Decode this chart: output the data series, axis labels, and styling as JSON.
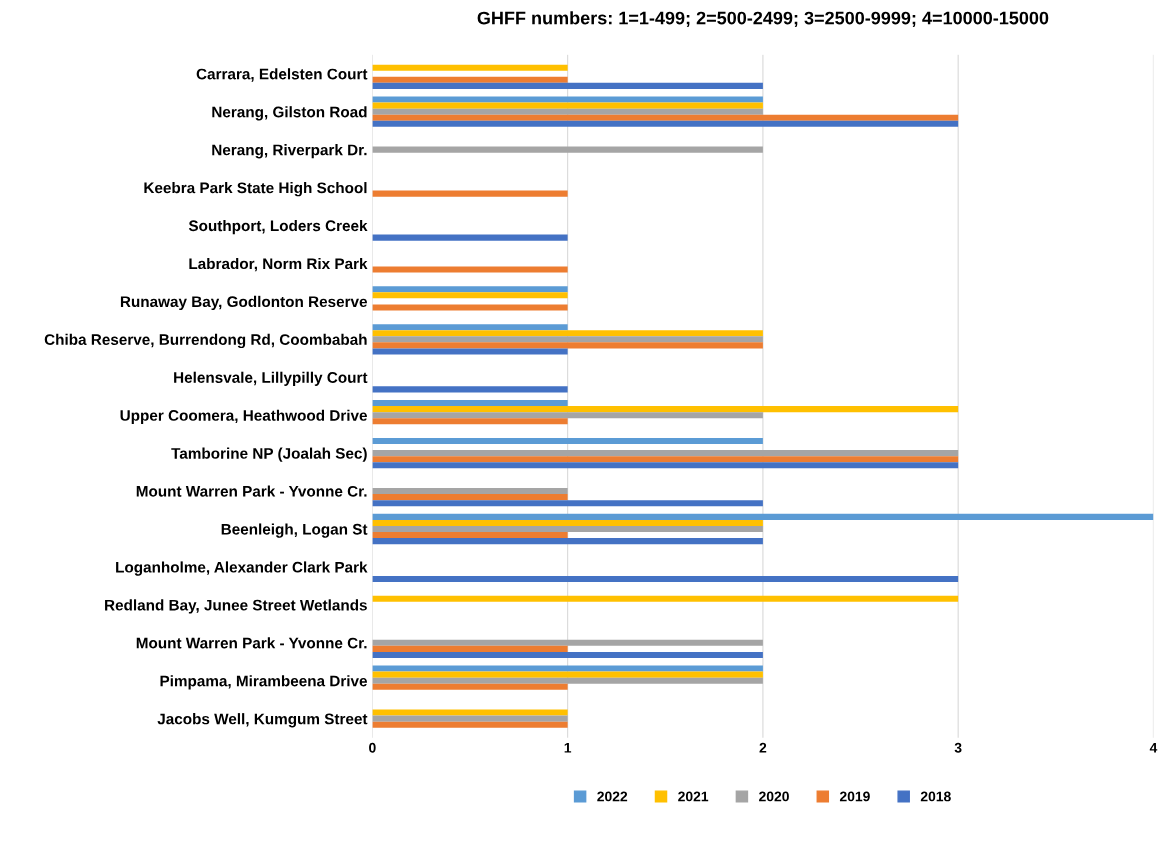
{
  "chart_data": {
    "type": "bar",
    "orientation": "horizontal",
    "title": "GHFF numbers: 1=1-499; 2=500-2499; 3=2500-9999; 4=10000-15000",
    "categories": [
      "Carrara, Edelsten Court",
      "Nerang, Gilston Road",
      "Nerang, Riverpark Dr.",
      "Keebra Park State High School",
      "Southport, Loders Creek",
      "Labrador, Norm Rix Park",
      "Runaway Bay, Godlonton Reserve",
      "Chiba Reserve, Burrendong Rd, Coombabah",
      "Helensvale, Lillypilly Court",
      "Upper Coomera, Heathwood Drive",
      "Tamborine NP (Joalah Sec)",
      "Mount Warren Park - Yvonne Cr.",
      "Beenleigh, Logan St",
      "Loganholme, Alexander Clark Park",
      "Redland Bay, Junee Street Wetlands",
      "Mount Warren Park - Yvonne Cr.",
      "Pimpama, Mirambeena Drive",
      "Jacobs Well, Kumgum Street"
    ],
    "series": [
      {
        "name": "2022",
        "color": "#5b9bd5",
        "values": [
          null,
          2,
          null,
          null,
          null,
          null,
          1,
          1,
          null,
          1,
          2,
          null,
          4,
          null,
          null,
          null,
          2,
          null
        ]
      },
      {
        "name": "2021",
        "color": "#ffc000",
        "values": [
          1,
          2,
          null,
          null,
          null,
          null,
          1,
          2,
          null,
          3,
          null,
          null,
          2,
          null,
          3,
          null,
          2,
          1
        ]
      },
      {
        "name": "2020",
        "color": "#a5a5a5",
        "values": [
          null,
          2,
          2,
          null,
          null,
          null,
          null,
          2,
          null,
          2,
          3,
          1,
          2,
          null,
          null,
          2,
          2,
          1
        ]
      },
      {
        "name": "2019",
        "color": "#ed7d31",
        "values": [
          1,
          3,
          null,
          1,
          null,
          1,
          1,
          2,
          null,
          1,
          3,
          1,
          1,
          null,
          null,
          1,
          1,
          1
        ]
      },
      {
        "name": "2018",
        "color": "#4472c4",
        "values": [
          2,
          3,
          null,
          null,
          1,
          null,
          null,
          1,
          1,
          null,
          3,
          2,
          2,
          3,
          null,
          2,
          null,
          null
        ]
      }
    ],
    "xlim": [
      0,
      4
    ],
    "xticks": [
      0,
      1,
      2,
      3,
      4
    ],
    "grid": "x",
    "legend": "bottom"
  }
}
